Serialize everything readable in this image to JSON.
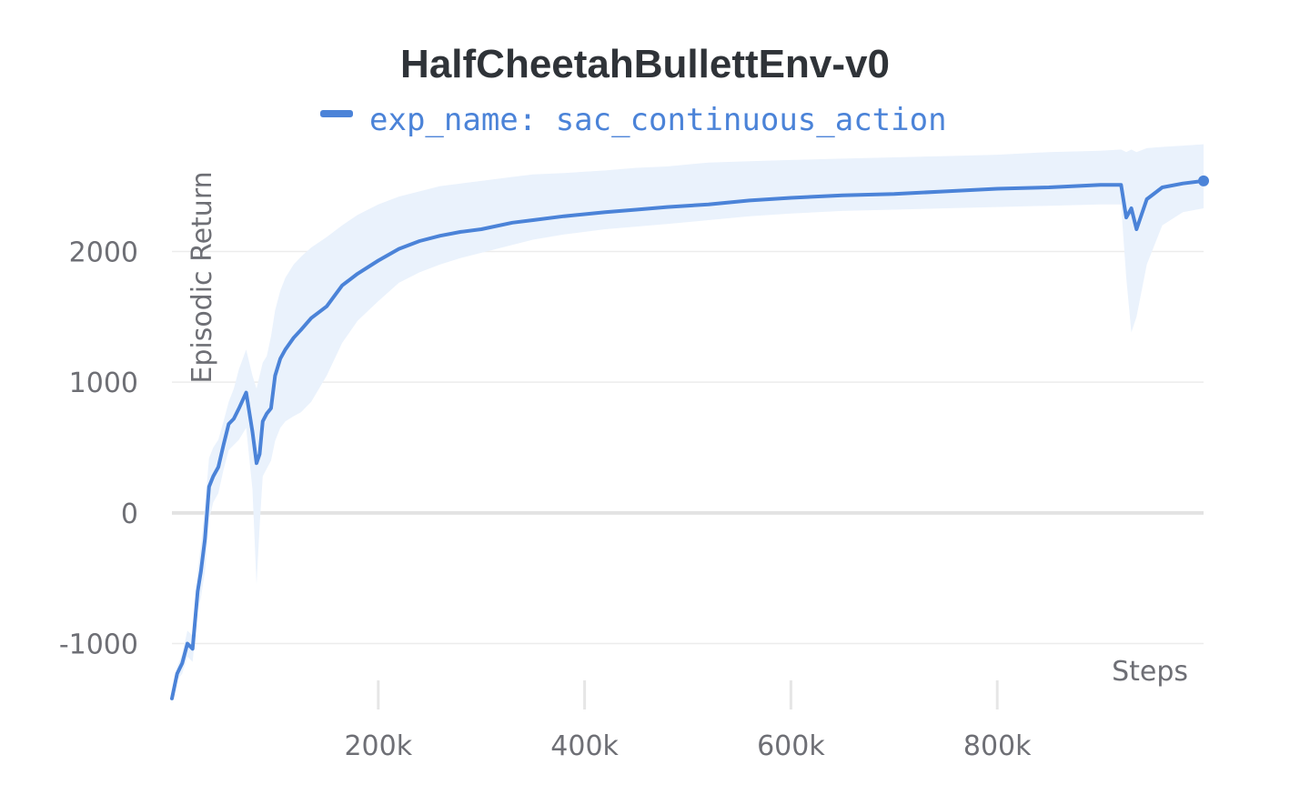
{
  "chart_data": {
    "type": "line",
    "title": "HalfCheetahBullettEnv-v0",
    "xlabel": "Steps",
    "ylabel": "Episodic Return",
    "xlim": [
      0,
      1000000
    ],
    "ylim": [
      -1400,
      2880
    ],
    "x_ticks": [
      200000,
      400000,
      600000,
      800000
    ],
    "x_tick_labels": [
      "200k",
      "400k",
      "600k",
      "800k"
    ],
    "y_ticks": [
      -1000,
      0,
      1000,
      2000
    ],
    "y_tick_labels": [
      "-1000",
      "0",
      "1000",
      "2000"
    ],
    "grid": true,
    "legend_position": "top-center",
    "series": [
      {
        "name": "exp_name: sac_continuous_action",
        "color": "#4b83d8",
        "band_color": "#eaf2fc",
        "x": [
          0,
          5000,
          10000,
          15000,
          20000,
          25000,
          28000,
          32000,
          36000,
          40000,
          45000,
          50000,
          55000,
          60000,
          65000,
          72000,
          78000,
          82000,
          85000,
          88000,
          92000,
          96000,
          100000,
          105000,
          110000,
          118000,
          125000,
          135000,
          150000,
          165000,
          180000,
          200000,
          220000,
          240000,
          260000,
          280000,
          300000,
          330000,
          350000,
          380000,
          420000,
          450000,
          480000,
          520000,
          560000,
          600000,
          650000,
          700000,
          750000,
          800000,
          850000,
          900000,
          920000,
          925000,
          930000,
          935000,
          945000,
          960000,
          980000,
          1000000
        ],
        "mean": [
          -1420,
          -1230,
          -1150,
          -1000,
          -1040,
          -600,
          -450,
          -200,
          200,
          280,
          350,
          520,
          680,
          720,
          800,
          920,
          620,
          380,
          450,
          700,
          760,
          800,
          1050,
          1180,
          1250,
          1340,
          1400,
          1490,
          1580,
          1740,
          1830,
          1930,
          2020,
          2080,
          2120,
          2150,
          2170,
          2220,
          2240,
          2270,
          2300,
          2320,
          2340,
          2360,
          2390,
          2410,
          2430,
          2440,
          2460,
          2480,
          2490,
          2510,
          2510,
          2260,
          2330,
          2170,
          2400,
          2490,
          2520,
          2540
        ],
        "upper": [
          -1420,
          -1180,
          -1080,
          -900,
          -940,
          -450,
          -250,
          50,
          420,
          500,
          560,
          700,
          850,
          950,
          1100,
          1250,
          1050,
          950,
          1050,
          1150,
          1200,
          1350,
          1550,
          1700,
          1800,
          1900,
          1960,
          2030,
          2110,
          2200,
          2280,
          2360,
          2420,
          2460,
          2500,
          2520,
          2540,
          2570,
          2590,
          2600,
          2620,
          2640,
          2650,
          2680,
          2690,
          2700,
          2710,
          2720,
          2730,
          2740,
          2760,
          2770,
          2780,
          2760,
          2780,
          2760,
          2790,
          2800,
          2810,
          2820
        ],
        "lower": [
          -1420,
          -1280,
          -1230,
          -1100,
          -1140,
          -750,
          -650,
          -450,
          -50,
          80,
          150,
          330,
          480,
          520,
          560,
          650,
          180,
          -550,
          -100,
          280,
          340,
          400,
          550,
          650,
          700,
          740,
          770,
          850,
          1050,
          1300,
          1470,
          1620,
          1760,
          1840,
          1900,
          1950,
          1990,
          2050,
          2090,
          2130,
          2170,
          2190,
          2210,
          2240,
          2270,
          2290,
          2310,
          2320,
          2330,
          2340,
          2350,
          2360,
          2360,
          1800,
          1380,
          1500,
          1900,
          2200,
          2300,
          2330
        ]
      }
    ]
  }
}
